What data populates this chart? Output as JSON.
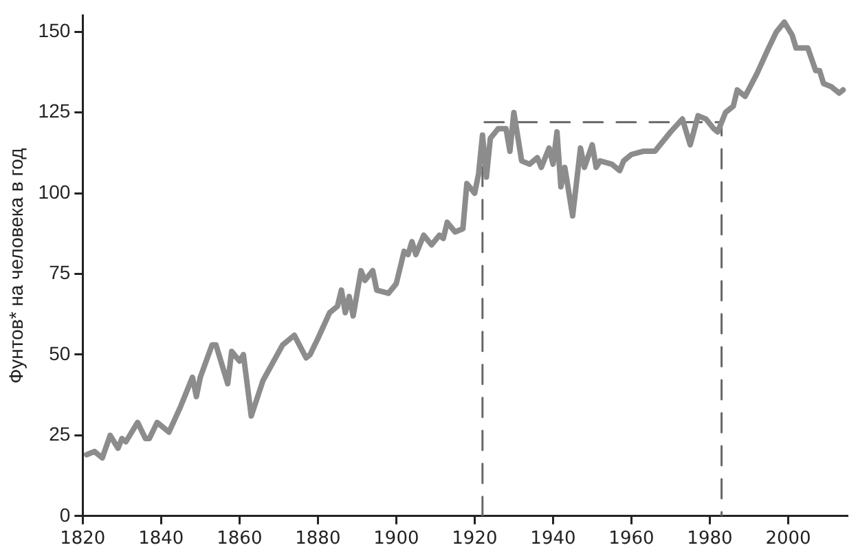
{
  "chart_data": {
    "type": "line",
    "ylabel": "Фунтов* на человека в год",
    "xlim": [
      1820,
      2015
    ],
    "xticks": [
      1820,
      1840,
      1860,
      1880,
      1900,
      1920,
      1940,
      1960,
      1980,
      2000
    ],
    "ylim": [
      0,
      155
    ],
    "yticks": [
      0,
      25,
      50,
      75,
      100,
      125,
      150
    ],
    "grid": false,
    "legend": false,
    "series": [
      {
        "color": "#8c8c8c",
        "line_style": "solid",
        "x": [
          1821,
          1823,
          1825,
          1827,
          1829,
          1830,
          1831,
          1834,
          1836,
          1837,
          1839,
          1842,
          1845,
          1846,
          1848,
          1849,
          1850,
          1853,
          1854,
          1857,
          1858,
          1860,
          1861,
          1863,
          1866,
          1871,
          1874,
          1877,
          1878,
          1880,
          1883,
          1885,
          1886,
          1887,
          1888,
          1889,
          1891,
          1892,
          1894,
          1895,
          1898,
          1900,
          1902,
          1903,
          1904,
          1905,
          1907,
          1909,
          1911,
          1912,
          1913,
          1915,
          1917,
          1918,
          1920,
          1921,
          1922,
          1923,
          1924,
          1926,
          1928,
          1929,
          1930,
          1932,
          1934,
          1936,
          1937,
          1939,
          1940,
          1941,
          1942,
          1943,
          1945,
          1947,
          1948,
          1950,
          1951,
          1952,
          1955,
          1957,
          1958,
          1960,
          1963,
          1966,
          1970,
          1973,
          1975,
          1977,
          1979,
          1981,
          1982,
          1984,
          1986,
          1987,
          1989,
          1992,
          1995,
          1997,
          1999,
          2001,
          2002,
          2005,
          2007,
          2008,
          2009,
          2011,
          2013,
          2014
        ],
        "values": [
          19,
          20,
          18,
          25,
          21,
          24,
          23,
          29,
          24,
          24,
          29,
          26,
          34,
          37,
          43,
          37,
          43,
          53,
          53,
          41,
          51,
          48,
          50,
          31,
          42,
          53,
          56,
          49,
          50,
          55,
          63,
          65,
          70,
          63,
          68,
          62,
          76,
          73,
          76,
          70,
          69,
          72,
          82,
          81,
          85,
          81,
          87,
          84,
          87,
          86,
          91,
          88,
          89,
          103,
          100,
          106,
          118,
          105,
          117,
          120,
          120,
          113,
          125,
          110,
          109,
          111,
          108,
          114,
          109,
          119,
          102,
          108,
          93,
          114,
          108,
          115,
          108,
          110,
          109,
          107,
          110,
          112,
          113,
          113,
          119,
          123,
          115,
          124,
          123,
          120,
          119,
          125,
          127,
          132,
          130,
          137,
          145,
          150,
          153,
          149,
          145,
          145,
          138,
          138,
          134,
          133,
          131,
          132
        ]
      },
      {
        "color": "#666666",
        "line_style": "dashed",
        "x": [
          1922,
          1922,
          1983,
          1983
        ],
        "values": [
          0,
          122,
          122,
          0
        ]
      }
    ]
  }
}
